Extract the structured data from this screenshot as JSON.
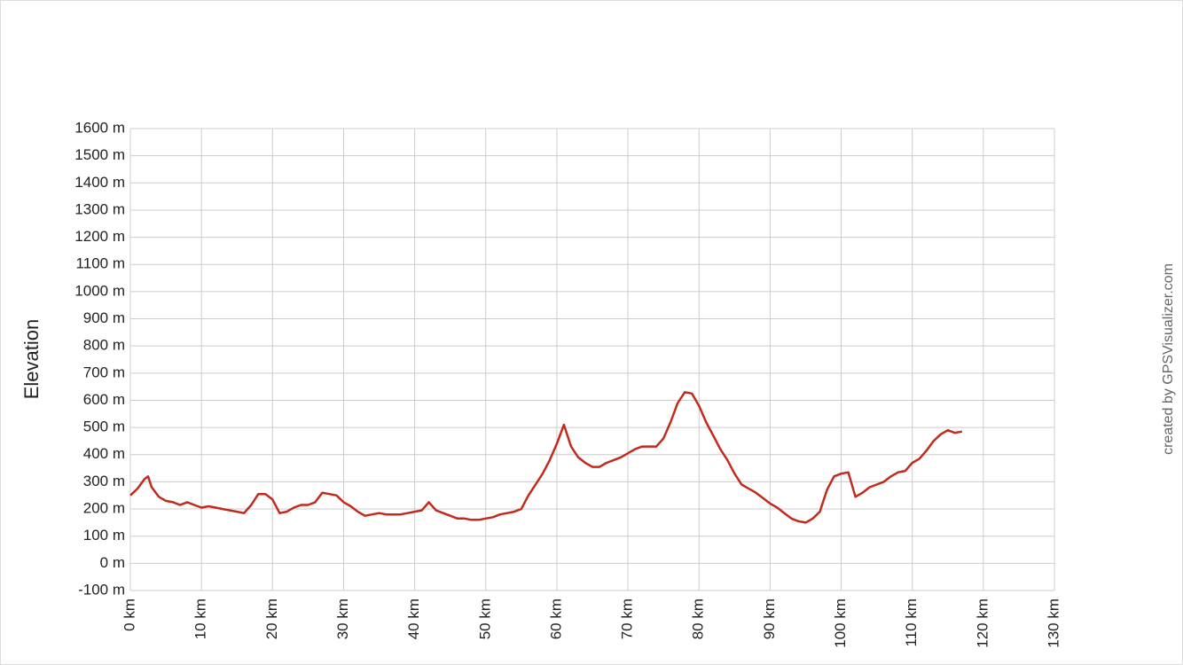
{
  "chart_data": {
    "type": "line",
    "y_label": "Elevation",
    "credit": "created by GPSVisualizer.com",
    "color": "#c22a1e",
    "grid": true,
    "xlim": [
      0,
      130
    ],
    "ylim": [
      -100,
      1600
    ],
    "xticks": [
      {
        "value": 0,
        "label": "0 km"
      },
      {
        "value": 10,
        "label": "10 km"
      },
      {
        "value": 20,
        "label": "20 km"
      },
      {
        "value": 30,
        "label": "30 km"
      },
      {
        "value": 40,
        "label": "40 km"
      },
      {
        "value": 50,
        "label": "50 km"
      },
      {
        "value": 60,
        "label": "60 km"
      },
      {
        "value": 70,
        "label": "70 km"
      },
      {
        "value": 80,
        "label": "80 km"
      },
      {
        "value": 90,
        "label": "90 km"
      },
      {
        "value": 100,
        "label": "100 km"
      },
      {
        "value": 110,
        "label": "110 km"
      },
      {
        "value": 120,
        "label": "120 km"
      },
      {
        "value": 130,
        "label": "130 km"
      }
    ],
    "yticks": [
      {
        "value": -100,
        "label": "-100 m"
      },
      {
        "value": 0,
        "label": "0 m"
      },
      {
        "value": 100,
        "label": "100 m"
      },
      {
        "value": 200,
        "label": "200 m"
      },
      {
        "value": 300,
        "label": "300 m"
      },
      {
        "value": 400,
        "label": "400 m"
      },
      {
        "value": 500,
        "label": "500 m"
      },
      {
        "value": 600,
        "label": "600 m"
      },
      {
        "value": 700,
        "label": "700 m"
      },
      {
        "value": 800,
        "label": "800 m"
      },
      {
        "value": 900,
        "label": "900 m"
      },
      {
        "value": 1000,
        "label": "1000 m"
      },
      {
        "value": 1100,
        "label": "1100 m"
      },
      {
        "value": 1200,
        "label": "1200 m"
      },
      {
        "value": 1300,
        "label": "1300 m"
      },
      {
        "value": 1400,
        "label": "1400 m"
      },
      {
        "value": 1500,
        "label": "1500 m"
      },
      {
        "value": 1600,
        "label": "1600 m"
      }
    ],
    "x": [
      0,
      1,
      2,
      2.5,
      3,
      4,
      5,
      6,
      7,
      8,
      9,
      10,
      11,
      12,
      13,
      14,
      15,
      16,
      17,
      18,
      19,
      20,
      21,
      22,
      23,
      24,
      25,
      26,
      27,
      28,
      29,
      30,
      31,
      32,
      33,
      34,
      35,
      36,
      37,
      38,
      39,
      40,
      41,
      42,
      43,
      44,
      45,
      46,
      47,
      48,
      49,
      50,
      51,
      52,
      53,
      54,
      55,
      56,
      57,
      58,
      59,
      60,
      61,
      62,
      63,
      64,
      65,
      66,
      67,
      68,
      69,
      70,
      71,
      72,
      73,
      74,
      75,
      76,
      77,
      78,
      79,
      80,
      81,
      82,
      83,
      84,
      85,
      86,
      87,
      88,
      89,
      90,
      91,
      92,
      93,
      94,
      95,
      96,
      97,
      98,
      99,
      100,
      101,
      102,
      103,
      104,
      105,
      106,
      107,
      108,
      109,
      110,
      111,
      112,
      113,
      114,
      115,
      116,
      117
    ],
    "values": [
      250,
      275,
      310,
      320,
      280,
      245,
      230,
      225,
      215,
      225,
      215,
      205,
      210,
      205,
      200,
      195,
      190,
      185,
      215,
      255,
      255,
      235,
      185,
      190,
      205,
      215,
      215,
      225,
      260,
      255,
      250,
      225,
      210,
      190,
      175,
      180,
      185,
      180,
      180,
      180,
      185,
      190,
      195,
      225,
      195,
      185,
      175,
      165,
      165,
      160,
      160,
      165,
      170,
      180,
      185,
      190,
      200,
      250,
      290,
      330,
      380,
      440,
      510,
      430,
      390,
      370,
      355,
      355,
      370,
      380,
      390,
      405,
      420,
      430,
      430,
      430,
      460,
      520,
      590,
      630,
      625,
      580,
      520,
      470,
      420,
      380,
      330,
      290,
      275,
      260,
      240,
      220,
      205,
      185,
      165,
      155,
      150,
      165,
      190,
      270,
      320,
      330,
      335,
      245,
      260,
      280,
      290,
      300,
      320,
      335,
      340,
      370,
      385,
      415,
      450,
      475,
      490,
      480,
      485
    ]
  }
}
